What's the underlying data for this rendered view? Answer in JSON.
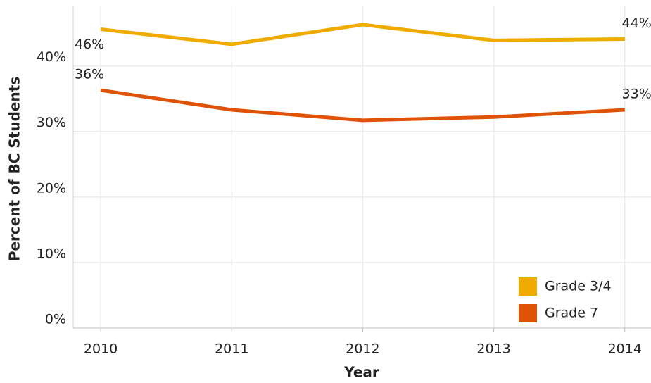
{
  "chart_data": {
    "type": "line",
    "x": [
      2010,
      2011,
      2012,
      2013,
      2014
    ],
    "xlim": [
      2009.79,
      2014.2
    ],
    "xticks": [
      2010,
      2011,
      2012,
      2013,
      2014
    ],
    "ylim": [
      0,
      49.2
    ],
    "yticks": [
      {
        "value": 0,
        "label": "0%"
      },
      {
        "value": 10,
        "label": "10%"
      },
      {
        "value": 20,
        "label": "20%"
      },
      {
        "value": 30,
        "label": "30%"
      },
      {
        "value": 40,
        "label": "40%"
      }
    ],
    "x_label": "Year",
    "y_label": "Percent of BC Students",
    "grid": true,
    "legend": "bottom-right",
    "series": [
      {
        "name": "Grade 3/4",
        "color": "#f0ab00",
        "values": [
          45.6,
          43.3,
          46.3,
          43.9,
          44.1
        ],
        "value_labels": [
          "46%",
          null,
          null,
          null,
          "44%"
        ]
      },
      {
        "name": "Grade 7",
        "color": "#e05206",
        "values": [
          36.3,
          33.3,
          31.7,
          32.2,
          33.3
        ],
        "value_labels": [
          "36%",
          null,
          null,
          null,
          "33%"
        ]
      }
    ]
  }
}
